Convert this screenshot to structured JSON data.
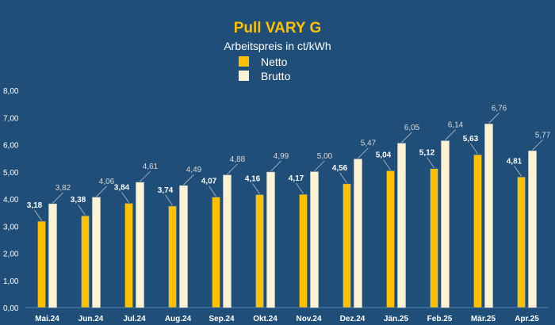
{
  "chart_data": {
    "type": "bar",
    "title": "Pull VARY G",
    "subtitle": "Arbeitspreis in ct/kWh",
    "categories": [
      "Mai.24",
      "Jun.24",
      "Jul.24",
      "Aug.24",
      "Sep.24",
      "Okt.24",
      "Nov.24",
      "Dez.24",
      "Jän.25",
      "Feb.25",
      "Mär.25",
      "Apr.25"
    ],
    "series": [
      {
        "name": "Netto",
        "color": "#ffc000",
        "values": [
          3.18,
          3.38,
          3.84,
          3.74,
          4.07,
          4.16,
          4.17,
          4.56,
          5.04,
          5.12,
          5.63,
          4.81
        ],
        "labels": [
          "3,18",
          "3,38",
          "3,84",
          "3,74",
          "4,07",
          "4,16",
          "4,17",
          "4,56",
          "5,04",
          "5,12",
          "5,63",
          "4,81"
        ]
      },
      {
        "name": "Brutto",
        "color": "#fdf3d2",
        "values": [
          3.82,
          4.06,
          4.61,
          4.49,
          4.88,
          4.99,
          5.0,
          5.47,
          6.05,
          6.14,
          6.76,
          5.77
        ],
        "labels": [
          "3,82",
          "4,06",
          "4,61",
          "4,49",
          "4,88",
          "4,99",
          "5,00",
          "5,47",
          "6,05",
          "6,14",
          "6,76",
          "5,77"
        ]
      }
    ],
    "ylim": [
      0,
      8
    ],
    "yticks": [
      "0,00",
      "1,00",
      "2,00",
      "3,00",
      "4,00",
      "5,00",
      "6,00",
      "7,00",
      "8,00"
    ],
    "legend_position": "top-center",
    "grid": false
  }
}
